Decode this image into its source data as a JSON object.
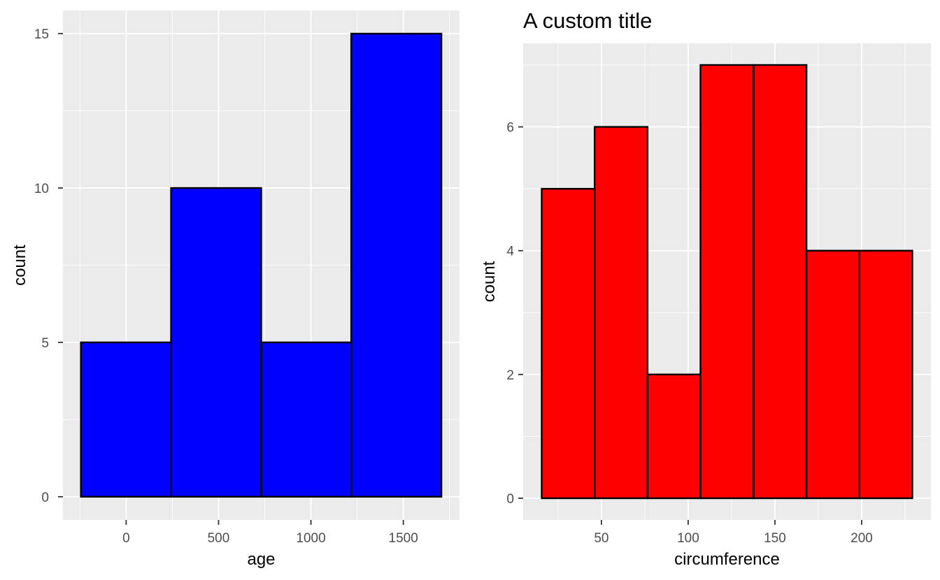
{
  "chart_data": [
    {
      "type": "bar",
      "title": "",
      "xlabel": "age",
      "ylabel": "count",
      "fill_color": "#0000FF",
      "outline_color": "#000000",
      "bins": [
        {
          "x0": -245,
          "x1": 243,
          "count": 5
        },
        {
          "x0": 243,
          "x1": 731,
          "count": 10
        },
        {
          "x0": 731,
          "x1": 1218,
          "count": 5
        },
        {
          "x0": 1218,
          "x1": 1706,
          "count": 15
        }
      ],
      "xlim": [
        -342,
        1804
      ],
      "ylim": [
        -0.75,
        15.75
      ],
      "xticks": [
        0,
        500,
        1000,
        1500
      ],
      "xtick_labels": [
        "0",
        "500",
        "1000",
        "1500"
      ],
      "yticks": [
        0,
        5,
        10,
        15
      ],
      "ytick_labels": [
        "0",
        "5",
        "10",
        "15"
      ],
      "grid": true,
      "background": "#EBEBEB"
    },
    {
      "type": "bar",
      "title": "A custom title",
      "xlabel": "circumference",
      "ylabel": "count",
      "fill_color": "#FF0000",
      "outline_color": "#000000",
      "bins": [
        {
          "x0": 15.6,
          "x1": 46.1,
          "count": 5
        },
        {
          "x0": 46.1,
          "x1": 76.6,
          "count": 6
        },
        {
          "x0": 76.6,
          "x1": 107.1,
          "count": 2
        },
        {
          "x0": 107.1,
          "x1": 137.7,
          "count": 7
        },
        {
          "x0": 137.7,
          "x1": 168.2,
          "count": 7
        },
        {
          "x0": 168.2,
          "x1": 198.7,
          "count": 4
        },
        {
          "x0": 198.7,
          "x1": 229.2,
          "count": 4
        }
      ],
      "xlim": [
        4.9,
        239.9
      ],
      "ylim": [
        -0.35,
        7.35
      ],
      "xticks": [
        50,
        100,
        150,
        200
      ],
      "xtick_labels": [
        "50",
        "100",
        "150",
        "200"
      ],
      "yticks": [
        0,
        2,
        4,
        6
      ],
      "ytick_labels": [
        "0",
        "2",
        "4",
        "6"
      ],
      "grid": true,
      "background": "#EBEBEB"
    }
  ]
}
